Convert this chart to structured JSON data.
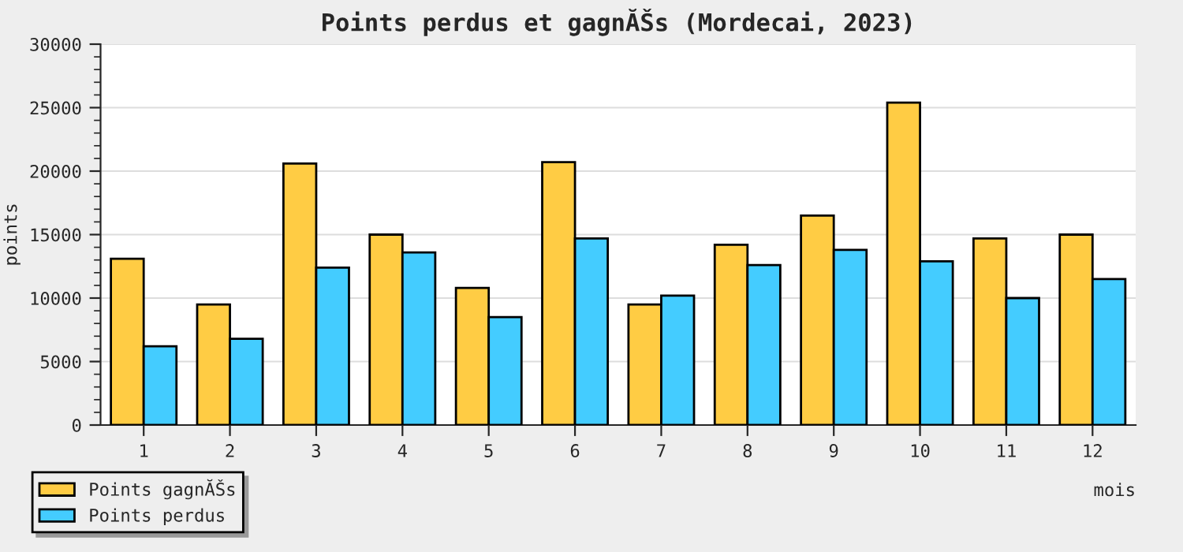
{
  "chart_data": {
    "type": "bar",
    "title": "Points perdus et gagnĂŠs (Mordecai, 2023)",
    "xlabel": "mois",
    "ylabel": "points",
    "categories": [
      "1",
      "2",
      "3",
      "4",
      "5",
      "6",
      "7",
      "8",
      "9",
      "10",
      "11",
      "12"
    ],
    "series": [
      {
        "name": "Points gagnĂŠs",
        "color": "#ffcc44",
        "values": [
          13100,
          9500,
          20600,
          15000,
          10800,
          20700,
          9500,
          14200,
          16500,
          25400,
          14700,
          15000
        ]
      },
      {
        "name": "Points perdus",
        "color": "#44ccff",
        "values": [
          6200,
          6800,
          12400,
          13600,
          8500,
          14700,
          10200,
          12600,
          13800,
          12900,
          10000,
          11500
        ]
      }
    ],
    "ylim": [
      0,
      30000
    ],
    "yticks": [
      0,
      5000,
      10000,
      15000,
      20000,
      25000,
      30000
    ],
    "grid": "y",
    "legend": "bottom left"
  }
}
